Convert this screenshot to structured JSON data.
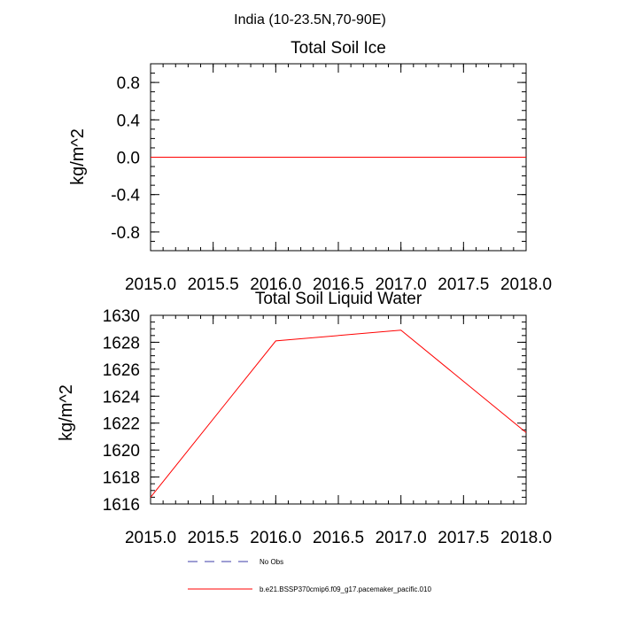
{
  "suptitle": "India (10-23.5N,70-90E)",
  "colors": {
    "model": "#ff0000",
    "obs": "#3d3da8",
    "axes": "#000000"
  },
  "chart_data": [
    {
      "type": "line",
      "title": "Total Soil Ice",
      "xlabel": "",
      "ylabel": "kg/m^2",
      "xlim": [
        2015.0,
        2018.0
      ],
      "ylim": [
        -1.0,
        1.0
      ],
      "xticks": [
        2015.0,
        2015.5,
        2016.0,
        2016.5,
        2017.0,
        2017.5,
        2018.0
      ],
      "xtick_labels": [
        "2015.0",
        "2015.5",
        "2016.0",
        "2016.5",
        "2017.0",
        "2017.5",
        "2018.0"
      ],
      "yticks": [
        -0.8,
        -0.4,
        0.0,
        0.4,
        0.8
      ],
      "ytick_labels": [
        "-0.8",
        "-0.4",
        "0.0",
        "0.4",
        "0.8"
      ],
      "series": [
        {
          "name": "b.e21.BSSP370cmip6.f09_g17.pacemaker_pacific.010",
          "x": [
            2015.0,
            2016.0,
            2017.0,
            2018.0
          ],
          "values": [
            0.0,
            0.0,
            0.0,
            0.0
          ]
        }
      ]
    },
    {
      "type": "line",
      "title": "Total Soil Liquid Water",
      "xlabel": "",
      "ylabel": "kg/m^2",
      "xlim": [
        2015.0,
        2018.0
      ],
      "ylim": [
        1616,
        1630
      ],
      "xticks": [
        2015.0,
        2015.5,
        2016.0,
        2016.5,
        2017.0,
        2017.5,
        2018.0
      ],
      "xtick_labels": [
        "2015.0",
        "2015.5",
        "2016.0",
        "2016.5",
        "2017.0",
        "2017.5",
        "2018.0"
      ],
      "yticks": [
        1616,
        1618,
        1620,
        1622,
        1624,
        1626,
        1628,
        1630
      ],
      "ytick_labels": [
        "1616",
        "1618",
        "1620",
        "1622",
        "1624",
        "1626",
        "1628",
        "1630"
      ],
      "series": [
        {
          "name": "b.e21.BSSP370cmip6.f09_g17.pacemaker_pacific.010",
          "x": [
            2015.0,
            2016.0,
            2017.0,
            2018.0
          ],
          "values": [
            1616.5,
            1628.1,
            1628.9,
            1621.3
          ]
        }
      ]
    }
  ],
  "legend": {
    "placement": "bottom-center",
    "entries": [
      {
        "label": "No Obs",
        "style": "dashed",
        "color": "#3d3da8"
      },
      {
        "label": "b.e21.BSSP370cmip6.f09_g17.pacemaker_pacific.010",
        "style": "solid",
        "color": "#ff0000"
      }
    ]
  }
}
